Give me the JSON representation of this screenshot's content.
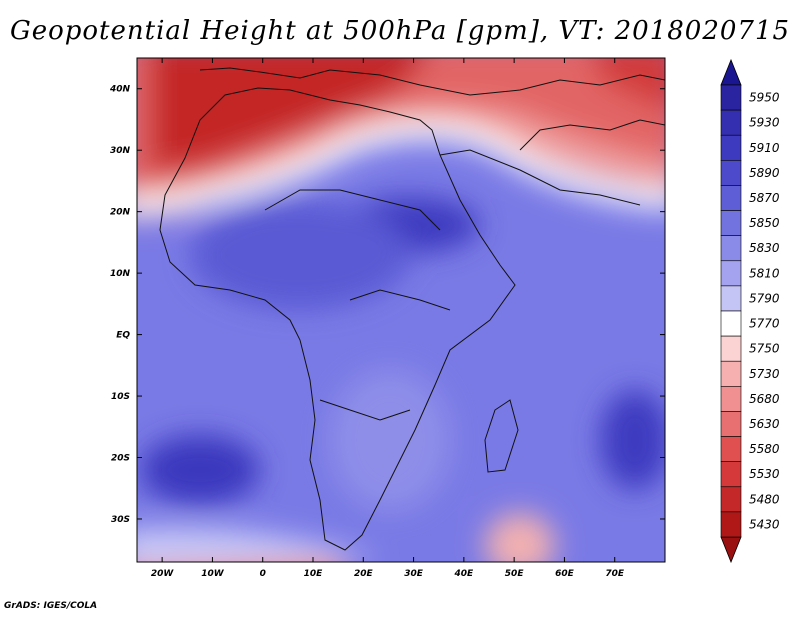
{
  "title": "Geopotential Height at 500hPa [gpm], VT: 2018020715",
  "footer": "GrADS: IGES/COLA",
  "map": {
    "lon_range": [
      -25,
      80
    ],
    "lat_range": [
      -37,
      45
    ],
    "x_ticks": [
      "20W",
      "10W",
      "0",
      "10E",
      "20E",
      "30E",
      "40E",
      "50E",
      "60E",
      "70E"
    ],
    "y_ticks": [
      "40N",
      "30N",
      "20N",
      "10N",
      "EQ",
      "10S",
      "20S",
      "30S"
    ]
  },
  "colorbar": {
    "labels": [
      "5950",
      "5930",
      "5910",
      "5890",
      "5870",
      "5850",
      "5830",
      "5810",
      "5790",
      "5770",
      "5750",
      "5730",
      "5680",
      "5630",
      "5580",
      "5530",
      "5480",
      "5430"
    ],
    "colors": [
      "#2a24a0",
      "#332fb0",
      "#3d3ac0",
      "#4d4bcc",
      "#5e5ed6",
      "#7373e0",
      "#8a8ae8",
      "#a3a3ef",
      "#c5c5f5",
      "#ffffff",
      "#fcd3d3",
      "#f6b0b0",
      "#f09090",
      "#e87070",
      "#e05050",
      "#d53939",
      "#c42828",
      "#b01818"
    ],
    "top_arrow_color": "#1a1590",
    "bottom_arrow_color": "#9a1010"
  }
}
